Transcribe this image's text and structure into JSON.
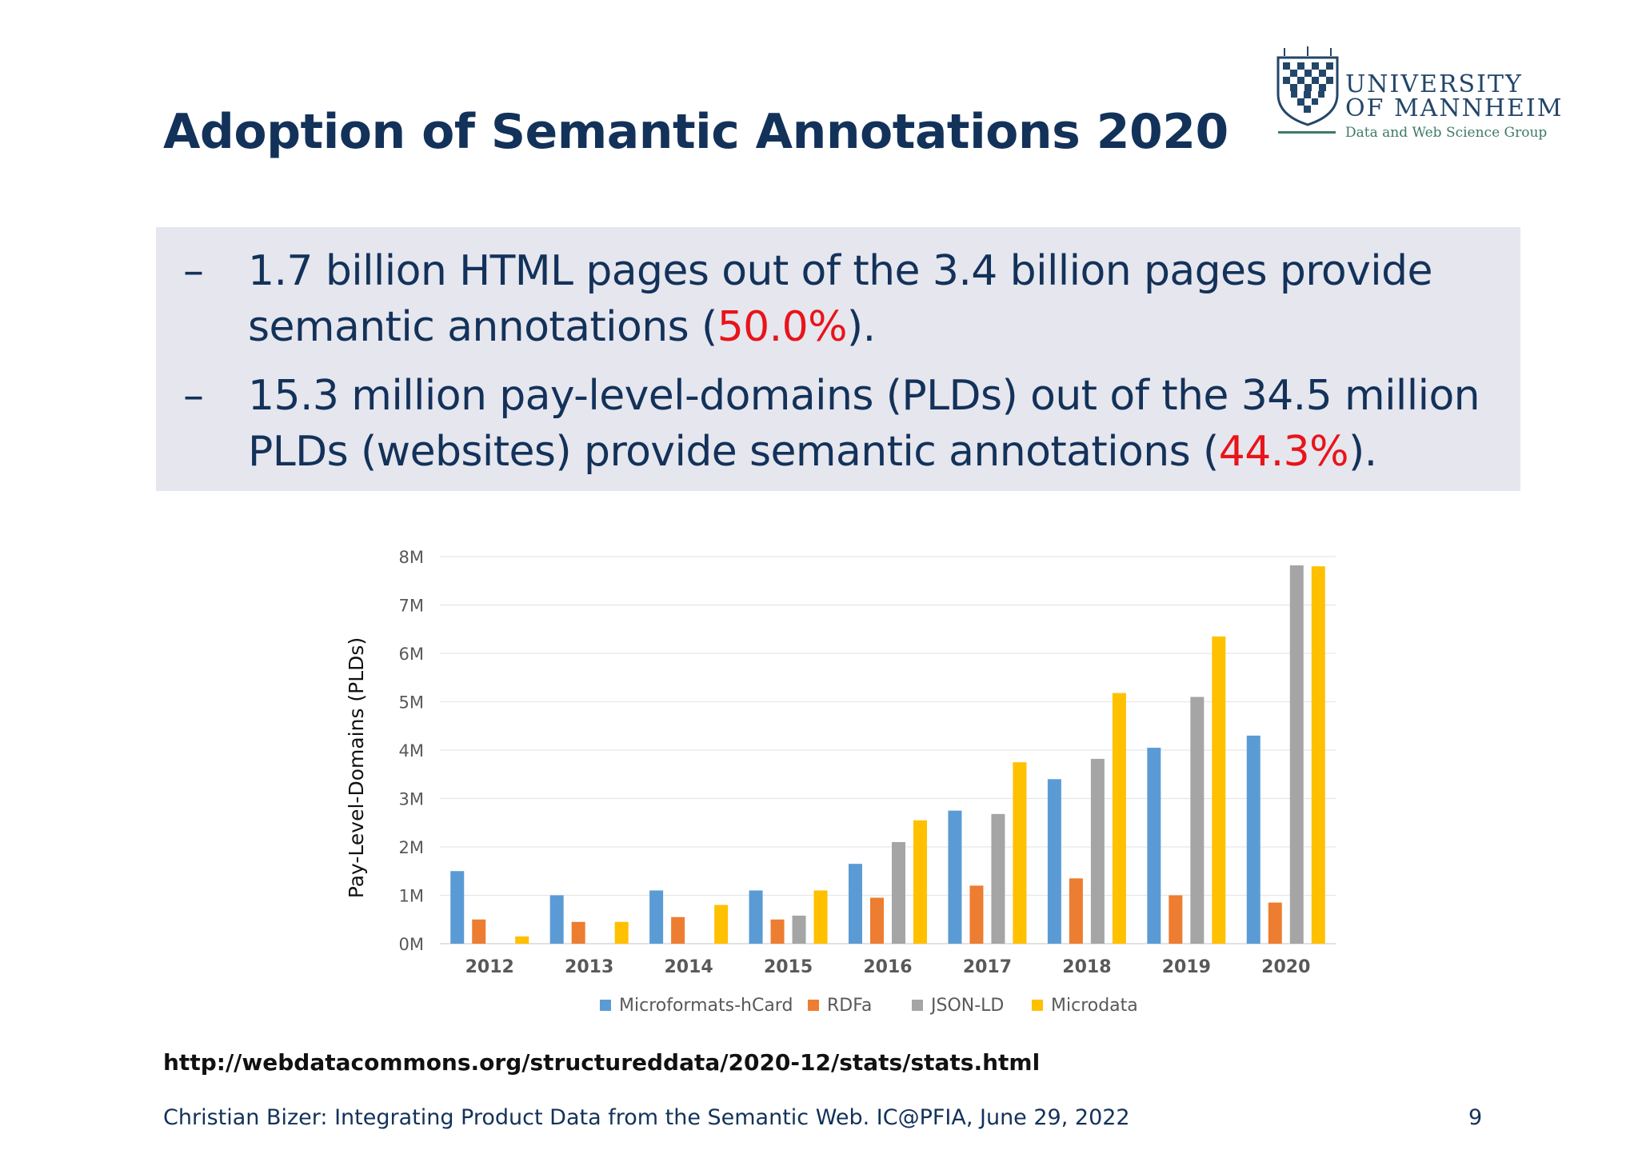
{
  "slide": {
    "title": "Adoption of Semantic Annotations 2020",
    "bullets": [
      {
        "dash": "–",
        "pre": "1.7 billion HTML pages out of the 3.4 billion pages provide semantic annotations (",
        "highlight": "50.0%",
        "post": ")."
      },
      {
        "dash": "–",
        "pre": "15.3 million pay-level-domains (PLDs) out of the 34.5 million PLDs (websites) provide semantic annotations (",
        "highlight": "44.3%",
        "post": ")."
      }
    ],
    "source_url": "http://webdatacommons.org/structureddata/2020-12/stats/stats.html",
    "footer": "Christian Bizer: Integrating Product Data from the Semantic Web. IC@PFIA, June 29, 2022",
    "page_number": "9"
  },
  "logo": {
    "line1": "UNIVERSITY",
    "line2": "OF MANNHEIM",
    "subtitle": "Data and Web Science Group"
  },
  "colors": {
    "title": "#13325a",
    "highlight": "#e8141a",
    "bullet_bg": "#e6e6ee"
  },
  "chart_data": {
    "type": "bar",
    "title": "",
    "xlabel": "",
    "ylabel": "Pay-Level-Domains (PLDs)",
    "ylim": [
      0,
      8
    ],
    "yticks": [
      "0M",
      "1M",
      "2M",
      "3M",
      "4M",
      "5M",
      "6M",
      "7M",
      "8M"
    ],
    "categories": [
      "2012",
      "2013",
      "2014",
      "2015",
      "2016",
      "2017",
      "2018",
      "2019",
      "2020"
    ],
    "series": [
      {
        "name": "Microformats-hCard",
        "color": "#5b9bd5",
        "values": [
          1.5,
          1.0,
          1.1,
          1.1,
          1.65,
          2.75,
          3.4,
          4.05,
          4.3
        ]
      },
      {
        "name": "RDFa",
        "color": "#ed7d31",
        "values": [
          0.5,
          0.45,
          0.55,
          0.5,
          0.95,
          1.2,
          1.35,
          1.0,
          0.85
        ]
      },
      {
        "name": "JSON-LD",
        "color": "#a5a5a5",
        "values": [
          0,
          0,
          0,
          0.58,
          2.1,
          2.68,
          3.82,
          5.1,
          7.82
        ]
      },
      {
        "name": "Microdata",
        "color": "#ffc000",
        "values": [
          0.15,
          0.45,
          0.8,
          1.1,
          2.55,
          3.75,
          5.18,
          6.35,
          7.8
        ]
      }
    ],
    "legend": "bottom",
    "grid": true
  }
}
